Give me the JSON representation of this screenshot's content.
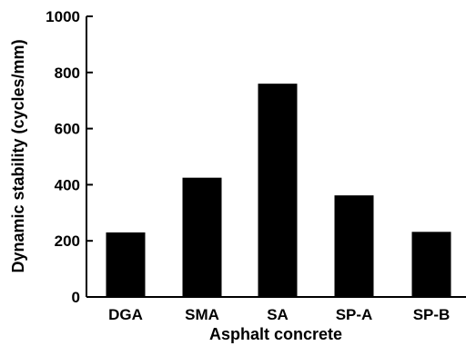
{
  "chart_data": {
    "type": "bar",
    "title": "",
    "xlabel": "Asphalt concrete",
    "ylabel": "Dynamic stability (cycles/mm)",
    "categories": [
      "DGA",
      "SMA",
      "SA",
      "SP-A",
      "SP-B"
    ],
    "values": [
      230,
      425,
      760,
      362,
      232
    ],
    "ylim": [
      0,
      1000
    ],
    "yticks": [
      0,
      200,
      400,
      600,
      800,
      1000
    ],
    "grid": false,
    "legend": "none",
    "bar_color": "#000000"
  }
}
